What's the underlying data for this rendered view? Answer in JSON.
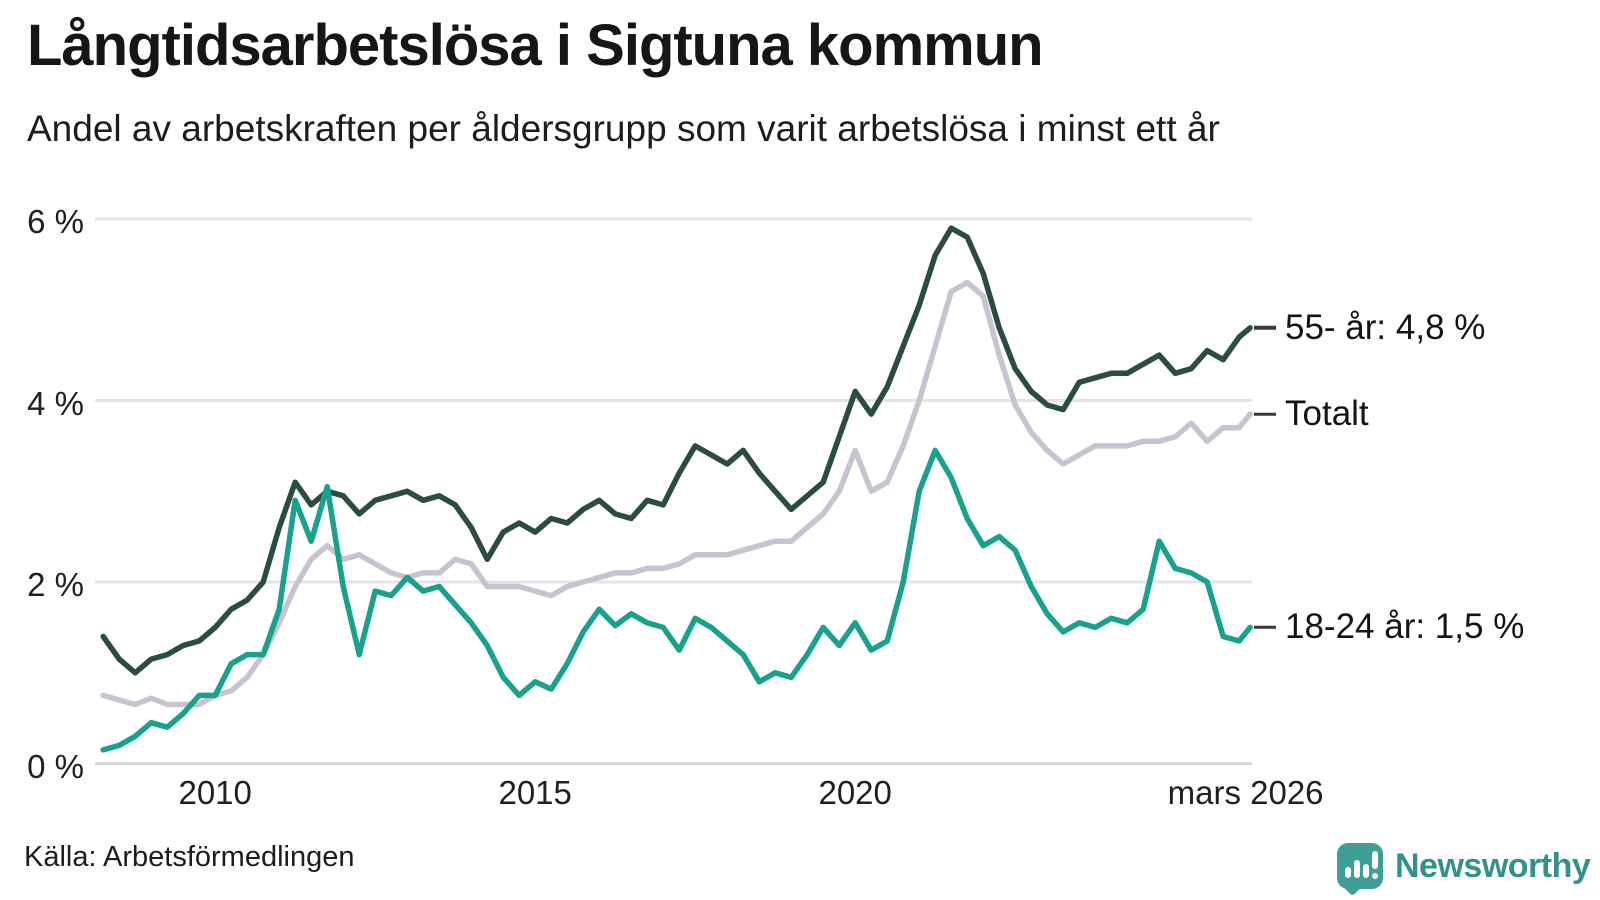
{
  "header": {
    "title": "Långtidsarbetslösa i Sigtuna kommun",
    "subtitle": "Andel av arbetskraften per åldersgrupp som varit arbetslösa i minst ett år"
  },
  "footer": {
    "source": "Källa: Arbetsförmedlingen",
    "brand": "Newsworthy"
  },
  "colors": {
    "series_55": "#2b4c43",
    "series_total": "#c7c3d1",
    "series_18_24": "#18a18c",
    "grid": "#e4e3e8",
    "axis_zero": "#d9d8de",
    "text": "#1a1a1a",
    "end_label_tick": "#3a3a3a",
    "brand_icon": "#3f9e96",
    "brand_text": "#33918b"
  },
  "chart_data": {
    "type": "line",
    "title": "Långtidsarbetslösa i Sigtuna kommun",
    "subtitle": "Andel av arbetskraften per åldersgrupp som varit arbetslösa i minst ett år",
    "source": "Källa: Arbetsförmedlingen",
    "unit": "%",
    "x_range": [
      2008.2,
      2026.2
    ],
    "ylim": [
      0,
      6
    ],
    "grid": true,
    "legend_position": "right-end-labels",
    "grid_color": "#e4e3e8",
    "axis_zero_color": "#d9d8de",
    "y_ticks": [
      {
        "value": 0,
        "label": "0 %"
      },
      {
        "value": 2,
        "label": "2 %"
      },
      {
        "value": 4,
        "label": "4 %"
      },
      {
        "value": 6,
        "label": "6 %"
      }
    ],
    "x_ticks": [
      {
        "value": 2010,
        "label": "2010"
      },
      {
        "value": 2015,
        "label": "2015"
      },
      {
        "value": 2020,
        "label": "2020"
      },
      {
        "value": 2026.1,
        "label": "mars 2026"
      }
    ],
    "x": [
      2008.25,
      2008.5,
      2008.75,
      2009,
      2009.25,
      2009.5,
      2009.75,
      2010,
      2010.25,
      2010.5,
      2010.75,
      2011,
      2011.25,
      2011.5,
      2011.75,
      2012,
      2012.25,
      2012.5,
      2012.75,
      2013,
      2013.25,
      2013.5,
      2013.75,
      2014,
      2014.25,
      2014.5,
      2014.75,
      2015,
      2015.25,
      2015.5,
      2015.75,
      2016,
      2016.25,
      2016.5,
      2016.75,
      2017,
      2017.25,
      2017.5,
      2017.75,
      2018,
      2018.25,
      2018.5,
      2018.75,
      2019,
      2019.25,
      2019.5,
      2019.75,
      2020,
      2020.25,
      2020.5,
      2020.75,
      2021,
      2021.25,
      2021.5,
      2021.75,
      2022,
      2022.25,
      2022.5,
      2022.75,
      2023,
      2023.25,
      2023.5,
      2023.75,
      2024,
      2024.25,
      2024.5,
      2024.75,
      2025,
      2025.25,
      2025.5,
      2025.75,
      2026,
      2026.17
    ],
    "series": [
      {
        "name": "55- år",
        "end_label": "55- år: 4,8 %",
        "last_value": 4.8,
        "color": "#2b4c43",
        "z": 2,
        "values": [
          1.4,
          1.15,
          1.0,
          1.15,
          1.2,
          1.3,
          1.35,
          1.5,
          1.7,
          1.8,
          2.0,
          2.6,
          3.1,
          2.85,
          3.0,
          2.95,
          2.75,
          2.9,
          2.95,
          3.0,
          2.9,
          2.95,
          2.85,
          2.6,
          2.25,
          2.55,
          2.65,
          2.55,
          2.7,
          2.65,
          2.8,
          2.9,
          2.75,
          2.7,
          2.9,
          2.85,
          3.2,
          3.5,
          3.4,
          3.3,
          3.45,
          3.2,
          3.0,
          2.8,
          2.95,
          3.1,
          3.6,
          4.1,
          3.85,
          4.15,
          4.6,
          5.05,
          5.6,
          5.9,
          5.8,
          5.4,
          4.8,
          4.35,
          4.1,
          3.95,
          3.9,
          4.2,
          4.25,
          4.3,
          4.3,
          4.4,
          4.5,
          4.3,
          4.35,
          4.55,
          4.45,
          4.7,
          4.8
        ]
      },
      {
        "name": "Totalt",
        "end_label": "Totalt",
        "last_value": 3.85,
        "color": "#c7c3d1",
        "z": 1,
        "values": [
          0.75,
          0.7,
          0.65,
          0.72,
          0.65,
          0.65,
          0.65,
          0.75,
          0.8,
          0.95,
          1.2,
          1.55,
          1.95,
          2.25,
          2.4,
          2.25,
          2.3,
          2.2,
          2.1,
          2.05,
          2.1,
          2.1,
          2.25,
          2.2,
          1.95,
          1.95,
          1.95,
          1.9,
          1.85,
          1.95,
          2.0,
          2.05,
          2.1,
          2.1,
          2.15,
          2.15,
          2.2,
          2.3,
          2.3,
          2.3,
          2.35,
          2.4,
          2.45,
          2.45,
          2.6,
          2.75,
          3.0,
          3.45,
          3.0,
          3.1,
          3.5,
          4.0,
          4.6,
          5.2,
          5.3,
          5.15,
          4.5,
          3.95,
          3.65,
          3.45,
          3.3,
          3.4,
          3.5,
          3.5,
          3.5,
          3.55,
          3.55,
          3.6,
          3.75,
          3.55,
          3.7,
          3.7,
          3.85
        ]
      },
      {
        "name": "18-24 år",
        "end_label": "18-24 år: 1,5 %",
        "last_value": 1.5,
        "color": "#18a18c",
        "z": 3,
        "values": [
          0.15,
          0.2,
          0.3,
          0.45,
          0.4,
          0.55,
          0.75,
          0.75,
          1.1,
          1.2,
          1.2,
          1.7,
          2.9,
          2.45,
          3.05,
          1.95,
          1.2,
          1.9,
          1.85,
          2.05,
          1.9,
          1.95,
          1.75,
          1.55,
          1.3,
          0.95,
          0.75,
          0.9,
          0.82,
          1.1,
          1.45,
          1.7,
          1.52,
          1.65,
          1.55,
          1.5,
          1.25,
          1.6,
          1.5,
          1.35,
          1.2,
          0.9,
          1.0,
          0.95,
          1.2,
          1.5,
          1.3,
          1.55,
          1.25,
          1.35,
          2.0,
          3.0,
          3.45,
          3.15,
          2.7,
          2.4,
          2.5,
          2.35,
          1.95,
          1.65,
          1.45,
          1.55,
          1.5,
          1.6,
          1.55,
          1.7,
          2.45,
          2.15,
          2.1,
          2.0,
          1.4,
          1.35,
          1.5
        ]
      }
    ]
  }
}
